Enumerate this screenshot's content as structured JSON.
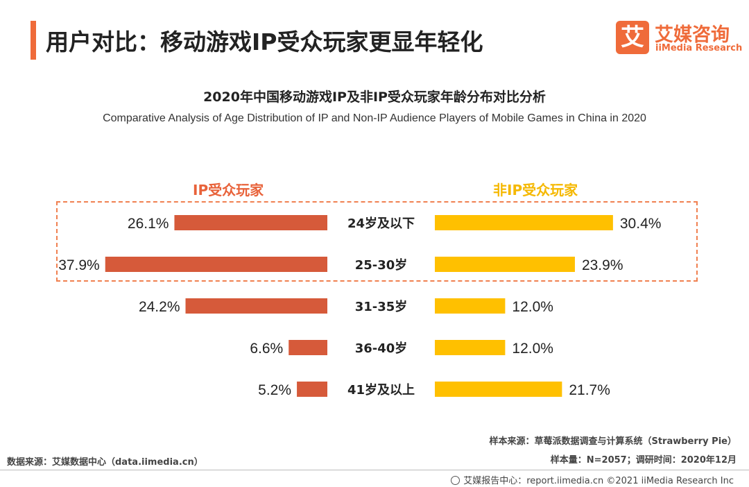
{
  "header": {
    "title": "用户对比：移动游戏IP受众玩家更显年轻化",
    "logo_mark": "艾",
    "logo_cn": "艾媒咨询",
    "logo_en": "iiMedia Research"
  },
  "colors": {
    "accent": "#ef6b3a",
    "ip_bar": "#d65a3a",
    "non_ip_bar": "#ffc000",
    "ip_legend": "#e8623a",
    "non_ip_legend": "#f5b800",
    "highlight_border": "#f08050"
  },
  "chart_data": {
    "type": "bar",
    "orientation": "horizontal-butterfly",
    "title": "2020年中国移动游戏IP及非IP受众玩家年龄分布对比分析",
    "subtitle": "Comparative Analysis of Age Distribution of IP and Non-IP Audience Players of Mobile Games  in China in 2020",
    "categories": [
      "24岁及以下",
      "25-30岁",
      "31-35岁",
      "36-40岁",
      "41岁及以上"
    ],
    "series": [
      {
        "name": "IP受众玩家",
        "values": [
          26.1,
          37.9,
          24.2,
          6.6,
          5.2
        ],
        "labels": [
          "26.1%",
          "37.9%",
          "24.2%",
          "6.6%",
          "5.2%"
        ]
      },
      {
        "name": "非IP受众玩家",
        "values": [
          30.4,
          23.9,
          12.0,
          12.0,
          21.7
        ],
        "labels": [
          "30.4%",
          "23.9%",
          "12.0%",
          "12.0%",
          "21.7%"
        ]
      }
    ],
    "unit": "%",
    "grid": false,
    "highlighted_categories": [
      "24岁及以下",
      "25-30岁"
    ]
  },
  "footer": {
    "sample_source": "样本来源：草莓派数据调查与计算系统（Strawberry Pie）",
    "sample_size": "样本量：N=2057；调研时间：2020年12月",
    "data_source": "数据来源：艾媒数据中心（data.iimedia.cn）",
    "report": "艾媒报告中心：report.iimedia.cn ©2021  iiMedia Research  Inc"
  }
}
